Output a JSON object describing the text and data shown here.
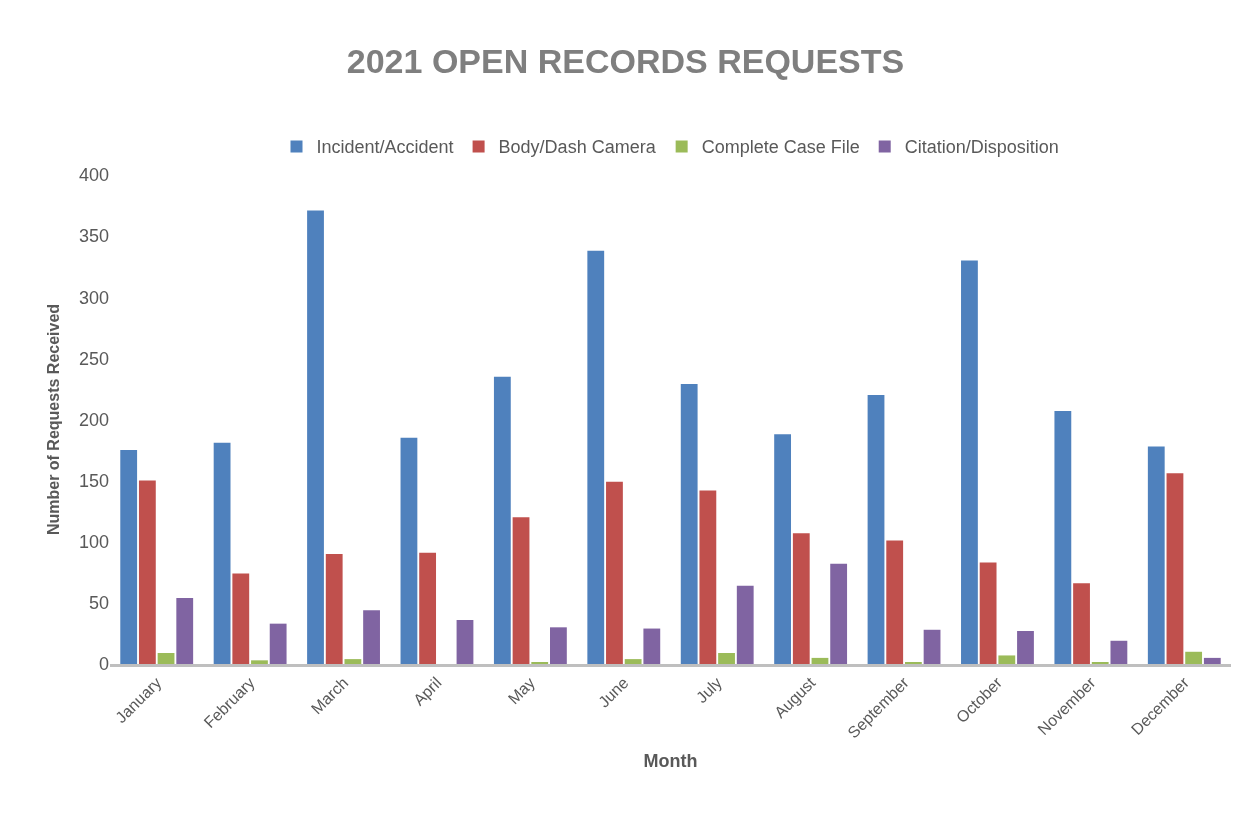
{
  "chart_data": {
    "type": "bar",
    "title": "2021 OPEN RECORDS REQUESTS",
    "xlabel": "Month",
    "ylabel": "Number of Requests Received",
    "categories": [
      "January",
      "February",
      "March",
      "April",
      "May",
      "June",
      "July",
      "August",
      "September",
      "October",
      "November",
      "December"
    ],
    "series": [
      {
        "name": "Incident/Accident",
        "color": "#4f81bd",
        "values": [
          175,
          181,
          371,
          185,
          235,
          338,
          229,
          188,
          220,
          330,
          207,
          178
        ]
      },
      {
        "name": "Body/Dash Camera",
        "color": "#c0504d",
        "values": [
          150,
          74,
          90,
          91,
          120,
          149,
          142,
          107,
          101,
          83,
          66,
          156
        ]
      },
      {
        "name": "Complete Case File",
        "color": "#9bbb59",
        "values": [
          9,
          3,
          4,
          0,
          1,
          4,
          9,
          5,
          1,
          7,
          1,
          10
        ]
      },
      {
        "name": "Citation/Disposition",
        "color": "#8064a2",
        "values": [
          54,
          33,
          44,
          36,
          30,
          29,
          64,
          82,
          28,
          27,
          19,
          5
        ]
      }
    ],
    "ylim": [
      0,
      400
    ],
    "yticks": [
      0,
      50,
      100,
      150,
      200,
      250,
      300,
      350,
      400
    ],
    "legend": "top"
  }
}
